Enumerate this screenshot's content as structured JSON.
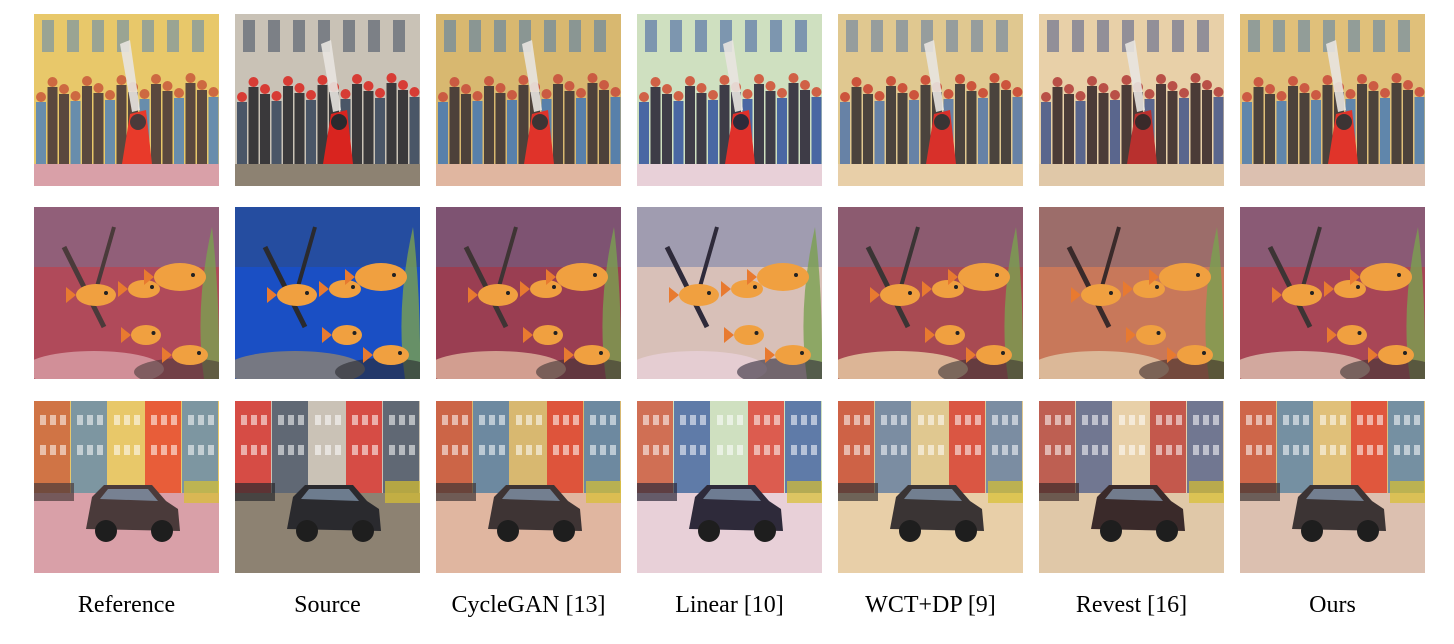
{
  "figure": {
    "columns": [
      {
        "key": "reference",
        "label": "Reference"
      },
      {
        "key": "source",
        "label": "Source"
      },
      {
        "key": "cyclegan",
        "label": "CycleGAN [13]"
      },
      {
        "key": "linear",
        "label": "Linear [10]"
      },
      {
        "key": "wctdp",
        "label": "WCT+DP [9]"
      },
      {
        "key": "revest",
        "label": "Revest [16]"
      },
      {
        "key": "ours",
        "label": "Ours"
      }
    ],
    "rows": [
      {
        "key": "breakdance-crowd",
        "subject": "breakdancer-crowd"
      },
      {
        "key": "goldfish",
        "subject": "goldfish-aquarium"
      },
      {
        "key": "car-street",
        "subject": "car-street"
      }
    ],
    "styles": {
      "reference": {
        "sky": "#e8c86a",
        "warm": "#c8583a",
        "cool": "#5a86b4",
        "ground": "#d9a0a8",
        "accent": "#e83a2a",
        "dark": "#4a3a3a",
        "water": "#b04a5a"
      },
      "source": {
        "sky": "#c9c2b6",
        "warm": "#d9241f",
        "cool": "#3c4a5e",
        "ground": "#8d8272",
        "accent": "#d9241f",
        "dark": "#2a2a2e",
        "water": "#1a4fc4"
      },
      "cyclegan": {
        "sky": "#d8b870",
        "warm": "#c84a3a",
        "cool": "#4a7ab0",
        "ground": "#e0b6a0",
        "accent": "#e0332a",
        "dark": "#3e3434",
        "water": "#9a3e52"
      },
      "linear": {
        "sky": "#cfe0c0",
        "warm": "#d04a30",
        "cool": "#3a5aa0",
        "ground": "#e8d0d8",
        "accent": "#e0302a",
        "dark": "#2e2a3a",
        "water": "#d8c0b8"
      },
      "wctdp": {
        "sky": "#e0c890",
        "warm": "#c8402e",
        "cool": "#5a7aa8",
        "ground": "#e8cfa8",
        "accent": "#d8302a",
        "dark": "#3a3434",
        "water": "#a84a52"
      },
      "revest": {
        "sky": "#e8d0a8",
        "warm": "#b03a36",
        "cool": "#4a5a8a",
        "ground": "#e0c8a8",
        "accent": "#b8302e",
        "dark": "#3a2a2a",
        "water": "#c8785a"
      },
      "ours": {
        "sky": "#e0c07a",
        "warm": "#c8483a",
        "cool": "#5280b0",
        "ground": "#dcc0b0",
        "accent": "#e0342a",
        "dark": "#3c3434",
        "water": "#a84656"
      }
    }
  }
}
